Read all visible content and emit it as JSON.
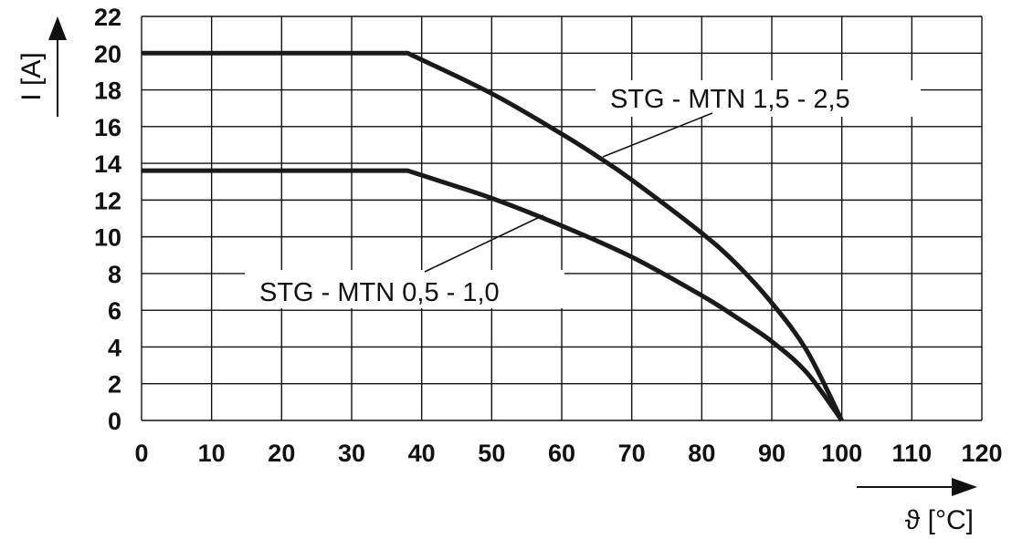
{
  "chart_data": {
    "type": "line",
    "xlabel": "ϑ [°C]",
    "ylabel": "I [A]",
    "xlim": [
      0,
      120
    ],
    "ylim": [
      0,
      22
    ],
    "x_ticks": [
      "0",
      "10",
      "20",
      "30",
      "40",
      "50",
      "60",
      "70",
      "80",
      "90",
      "100",
      "110",
      "120"
    ],
    "y_ticks": [
      "22",
      "20",
      "18",
      "16",
      "14",
      "12",
      "10",
      "8",
      "6",
      "4",
      "2",
      "0"
    ],
    "grid": true,
    "legend": "none",
    "series": [
      {
        "name": "STG - MTN 1,5 - 2,5",
        "x": [
          0,
          38,
          50,
          60,
          65,
          70,
          80,
          85,
          90,
          95,
          100
        ],
        "y": [
          20,
          20,
          17.8,
          15.6,
          14.4,
          13.1,
          10.2,
          8.5,
          6.4,
          3.8,
          0
        ],
        "color": "#1a1a1a"
      },
      {
        "name": "STG - MTN 0,5 - 1,0",
        "x": [
          0,
          38,
          50,
          60,
          70,
          80,
          85,
          90,
          95,
          100
        ],
        "y": [
          13.6,
          13.6,
          12.1,
          10.6,
          8.9,
          6.8,
          5.6,
          4.3,
          2.6,
          0
        ],
        "color": "#1a1a1a"
      }
    ]
  }
}
